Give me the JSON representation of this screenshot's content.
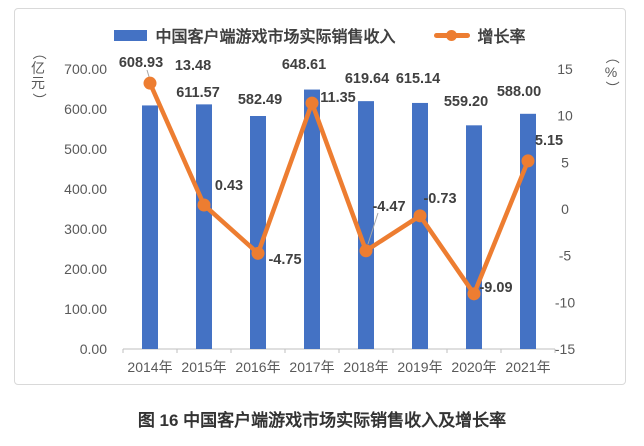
{
  "legend": {
    "revenue_label": "中国客户端游戏市场实际销售收入",
    "growth_label": "增长率"
  },
  "caption": "图 16 中国客户端游戏市场实际销售收入及增长率",
  "colors": {
    "bar": "#4472C4",
    "line": "#ED7D31",
    "axis_text": "#595959",
    "data_label_text": "#404040",
    "axis_line": "#bfbfbf",
    "leader_line": "#a6a6a6",
    "box_border": "#d9d9d9"
  },
  "chart_data": {
    "type": "bar",
    "subtype": "combo bar+line, dual axis",
    "title": "图 16 中国客户端游戏市场实际销售收入及增长率",
    "categories": [
      "2014年",
      "2015年",
      "2016年",
      "2017年",
      "2018年",
      "2019年",
      "2020年",
      "2021年"
    ],
    "series": [
      {
        "name": "中国客户端游戏市场实际销售收入",
        "type": "bar",
        "axis": "left",
        "color": "#4472C4",
        "values": [
          608.93,
          611.57,
          582.49,
          648.61,
          619.64,
          615.14,
          559.2,
          588.0
        ]
      },
      {
        "name": "增长率",
        "type": "line",
        "axis": "right",
        "color": "#ED7D31",
        "values": [
          13.48,
          0.43,
          -4.75,
          11.35,
          -4.47,
          -0.73,
          -9.09,
          5.15
        ]
      }
    ],
    "left_axis": {
      "title": "（亿元）",
      "min": 0,
      "max": 700,
      "step": 100,
      "decimals": 2
    },
    "right_axis": {
      "title": "（%）",
      "min": -15,
      "max": 15,
      "step": 5,
      "decimals": 0
    },
    "grid": false,
    "legend_position": "top",
    "data_labels": true
  }
}
